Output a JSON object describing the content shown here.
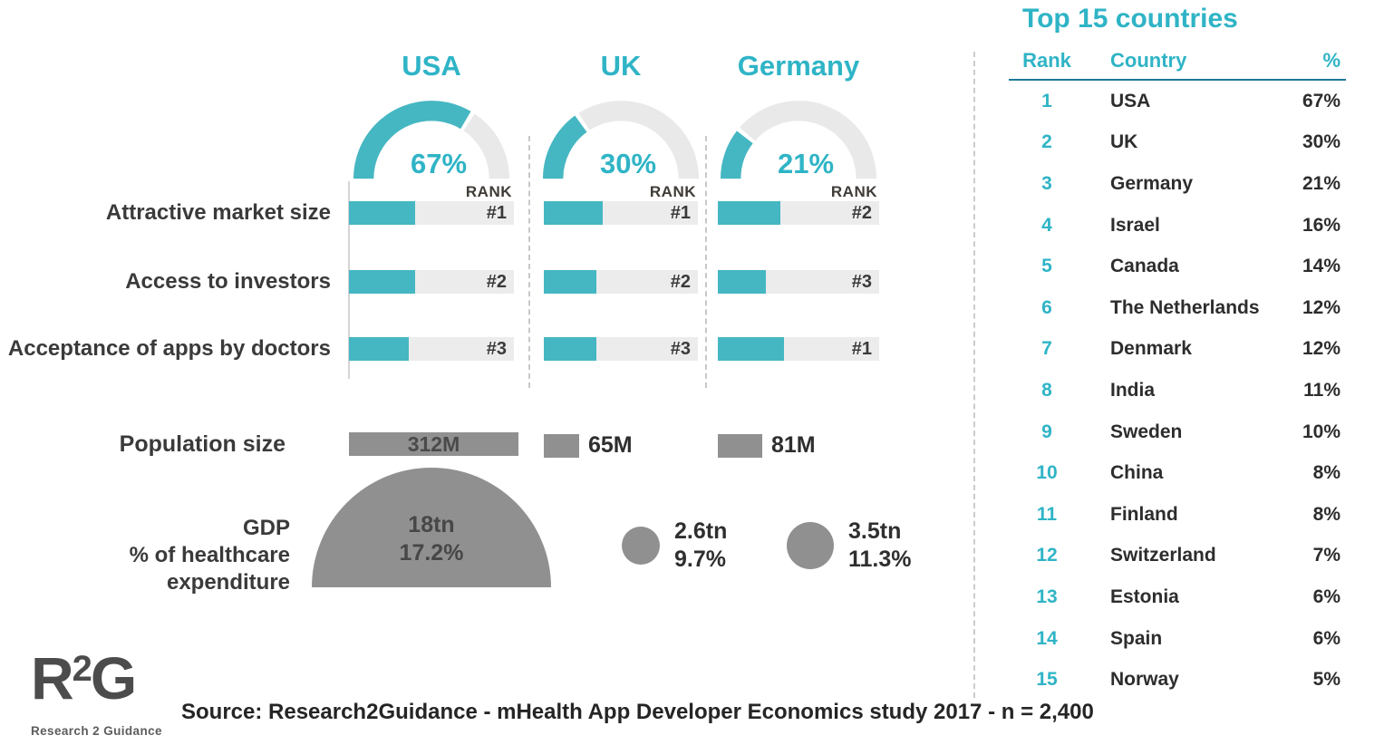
{
  "accent_color": "#2fb4c6",
  "teal_fill_color": "#45b7c2",
  "gray_color": "#909090",
  "chart_data": {
    "type": "infographic",
    "description": "mHealth app market attractiveness comparison: USA, UK, Germany",
    "rank_header": "RANK",
    "criteria_labels": [
      "Attractive market size",
      "Access to investors",
      "Acceptance of apps by doctors"
    ],
    "population_row_label": "Population size",
    "gdp_row_label_line1": "GDP",
    "gdp_row_label_line2": "% of healthcare expenditure",
    "countries": [
      {
        "name": "USA",
        "market_share_pct": 67,
        "share_label": "67%",
        "criteria_ranks": [
          "#1",
          "#2",
          "#3"
        ],
        "criteria_fill_pct": [
          40,
          40,
          36
        ],
        "population_millions": 312,
        "population_label": "312M",
        "gdp_label": "18tn",
        "healthcare_expenditure_label": "17.2%"
      },
      {
        "name": "UK",
        "market_share_pct": 30,
        "share_label": "30%",
        "criteria_ranks": [
          "#1",
          "#2",
          "#3"
        ],
        "criteria_fill_pct": [
          38,
          34,
          34
        ],
        "population_millions": 65,
        "population_label": "65M",
        "gdp_label": "2.6tn",
        "healthcare_expenditure_label": "9.7%"
      },
      {
        "name": "Germany",
        "market_share_pct": 21,
        "share_label": "21%",
        "criteria_ranks": [
          "#2",
          "#3",
          "#1"
        ],
        "criteria_fill_pct": [
          39,
          30,
          41
        ],
        "population_millions": 81,
        "population_label": "81M",
        "gdp_label": "3.5tn",
        "healthcare_expenditure_label": "11.3%"
      }
    ],
    "table": {
      "title": "Top 15 countries",
      "columns": [
        "Rank",
        "Country",
        "%"
      ],
      "rows": [
        {
          "rank": "1",
          "country": "USA",
          "pct": "67%"
        },
        {
          "rank": "2",
          "country": "UK",
          "pct": "30%"
        },
        {
          "rank": "3",
          "country": "Germany",
          "pct": "21%"
        },
        {
          "rank": "4",
          "country": "Israel",
          "pct": "16%"
        },
        {
          "rank": "5",
          "country": "Canada",
          "pct": "14%"
        },
        {
          "rank": "6",
          "country": "The Netherlands",
          "pct": "12%"
        },
        {
          "rank": "7",
          "country": "Denmark",
          "pct": "12%"
        },
        {
          "rank": "8",
          "country": "India",
          "pct": "11%"
        },
        {
          "rank": "9",
          "country": "Sweden",
          "pct": "10%"
        },
        {
          "rank": "10",
          "country": "China",
          "pct": "8%"
        },
        {
          "rank": "11",
          "country": "Finland",
          "pct": "8%"
        },
        {
          "rank": "12",
          "country": "Switzerland",
          "pct": "7%"
        },
        {
          "rank": "13",
          "country": "Estonia",
          "pct": "6%"
        },
        {
          "rank": "14",
          "country": "Spain",
          "pct": "6%"
        },
        {
          "rank": "15",
          "country": "Norway",
          "pct": "5%"
        }
      ]
    }
  },
  "footer": {
    "logo_r": "R",
    "logo_2": "2",
    "logo_g": "G",
    "logo_caption": "Research 2 Guidance",
    "source": "Source: Research2Guidance - mHealth App Developer Economics study 2017 - n = 2,400"
  }
}
